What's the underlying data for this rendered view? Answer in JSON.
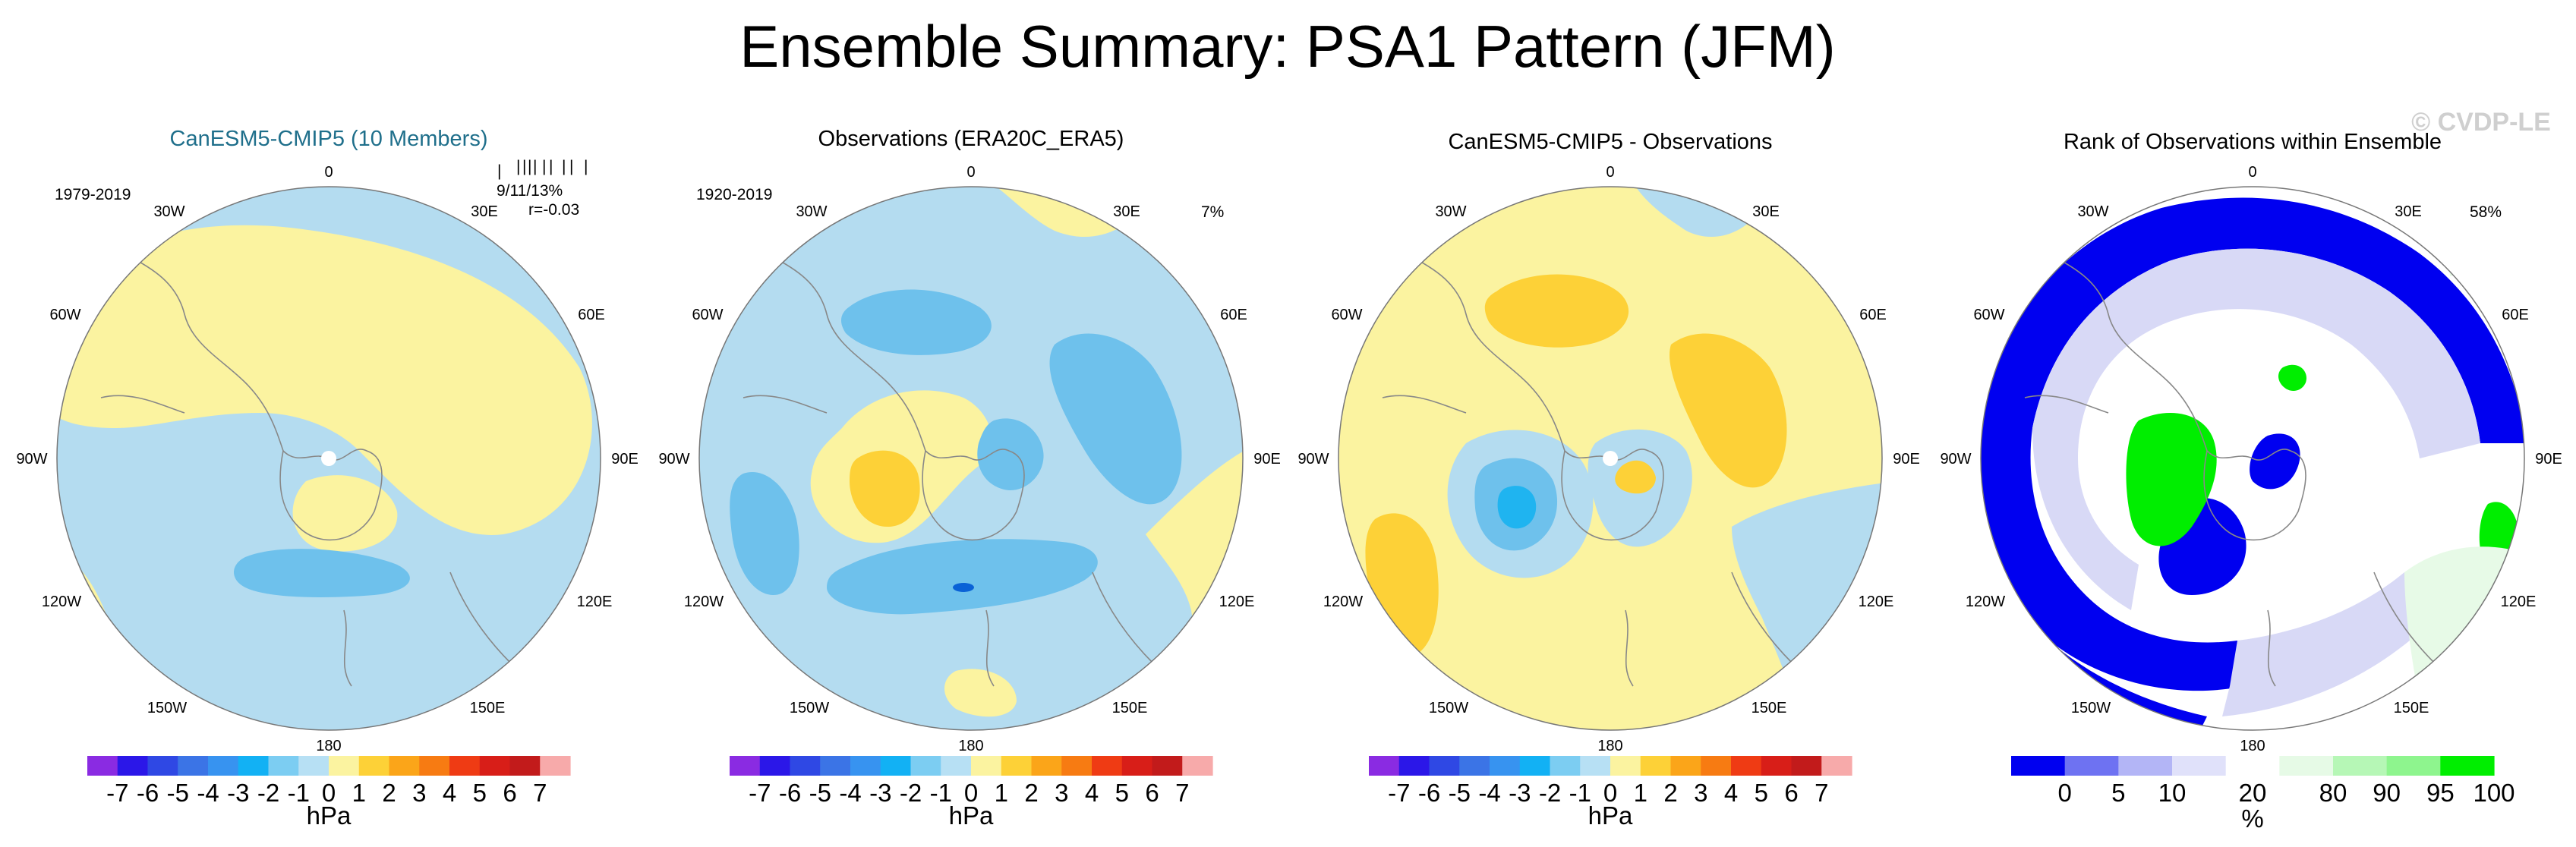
{
  "title": "Ensemble Summary: PSA1 Pattern (JFM)",
  "watermark": "© CVDP-LE",
  "colors": {
    "accent": "#1f6f8b",
    "neg_light": "#b4dcf0",
    "neg_mid": "#6ec1ec",
    "neg_strong": "#1fb4f0",
    "neg_deep": "#0a62d6",
    "pos_light": "#fbf3a0",
    "pos_mid": "#fdd137",
    "coast": "#888888",
    "rank_blue": "#0000f0",
    "rank_lav": "#d8d9f6",
    "rank_green": "#00ee00",
    "rank_palegreen": "#e7fae7"
  },
  "lon_labels": [
    "0",
    "30E",
    "60E",
    "90E",
    "120E",
    "150E",
    "180",
    "150W",
    "120W",
    "90W",
    "60W",
    "30W"
  ],
  "chart_data": [
    {
      "type": "heatmap",
      "projection": "polar-stereographic-south",
      "title": "CanESM5-CMIP5 (10 Members)",
      "period": "1979-2019",
      "stats_line1": "9/11/13%",
      "stats_line2": "r=-0.03",
      "member_ticks": [
        "|",
        "|",
        "|",
        "|",
        "|",
        "|",
        "|",
        "|",
        "|",
        "|"
      ],
      "units": "hPa",
      "colorbar": {
        "levels": [
          "-7",
          "-6",
          "-5",
          "-4",
          "-3",
          "-2",
          "-1",
          "0",
          "1",
          "2",
          "3",
          "4",
          "5",
          "6",
          "7"
        ],
        "colors": [
          "#8a2be2",
          "#2b17e8",
          "#2f48e4",
          "#3b74e6",
          "#3793f0",
          "#12b1f4",
          "#7ccdf2",
          "#b7e0f4",
          "#fbf3a0",
          "#fdd137",
          "#fba519",
          "#f77b12",
          "#ef3b14",
          "#d81e18",
          "#c21b1b",
          "#f7aaaa"
        ]
      }
    },
    {
      "type": "heatmap",
      "projection": "polar-stereographic-south",
      "title": "Observations (ERA20C_ERA5)",
      "period": "1920-2019",
      "percent": "7%",
      "units": "hPa",
      "colorbar": {
        "levels": [
          "-7",
          "-6",
          "-5",
          "-4",
          "-3",
          "-2",
          "-1",
          "0",
          "1",
          "2",
          "3",
          "4",
          "5",
          "6",
          "7"
        ],
        "colors": [
          "#8a2be2",
          "#2b17e8",
          "#2f48e4",
          "#3b74e6",
          "#3793f0",
          "#12b1f4",
          "#7ccdf2",
          "#b7e0f4",
          "#fbf3a0",
          "#fdd137",
          "#fba519",
          "#f77b12",
          "#ef3b14",
          "#d81e18",
          "#c21b1b",
          "#f7aaaa"
        ]
      }
    },
    {
      "type": "heatmap",
      "projection": "polar-stereographic-south",
      "title": "CanESM5-CMIP5 - Observations",
      "units": "hPa",
      "colorbar": {
        "levels": [
          "-7",
          "-6",
          "-5",
          "-4",
          "-3",
          "-2",
          "-1",
          "0",
          "1",
          "2",
          "3",
          "4",
          "5",
          "6",
          "7"
        ],
        "colors": [
          "#8a2be2",
          "#2b17e8",
          "#2f48e4",
          "#3b74e6",
          "#3793f0",
          "#12b1f4",
          "#7ccdf2",
          "#b7e0f4",
          "#fbf3a0",
          "#fdd137",
          "#fba519",
          "#f77b12",
          "#ef3b14",
          "#d81e18",
          "#c21b1b",
          "#f7aaaa"
        ]
      }
    },
    {
      "type": "heatmap",
      "projection": "polar-stereographic-south",
      "title": "Rank of Observations within Ensemble",
      "percent": "58%",
      "units": "%",
      "colorbar": {
        "levels": [
          "0",
          "5",
          "10",
          "20",
          "80",
          "90",
          "95",
          "100"
        ],
        "colors": [
          "#0000f0",
          "#6e72f2",
          "#b3b5f6",
          "#e0e1fa",
          "#ffffff",
          "#e6fae6",
          "#b6f7b6",
          "#8ef58e",
          "#00ee00"
        ]
      }
    }
  ]
}
